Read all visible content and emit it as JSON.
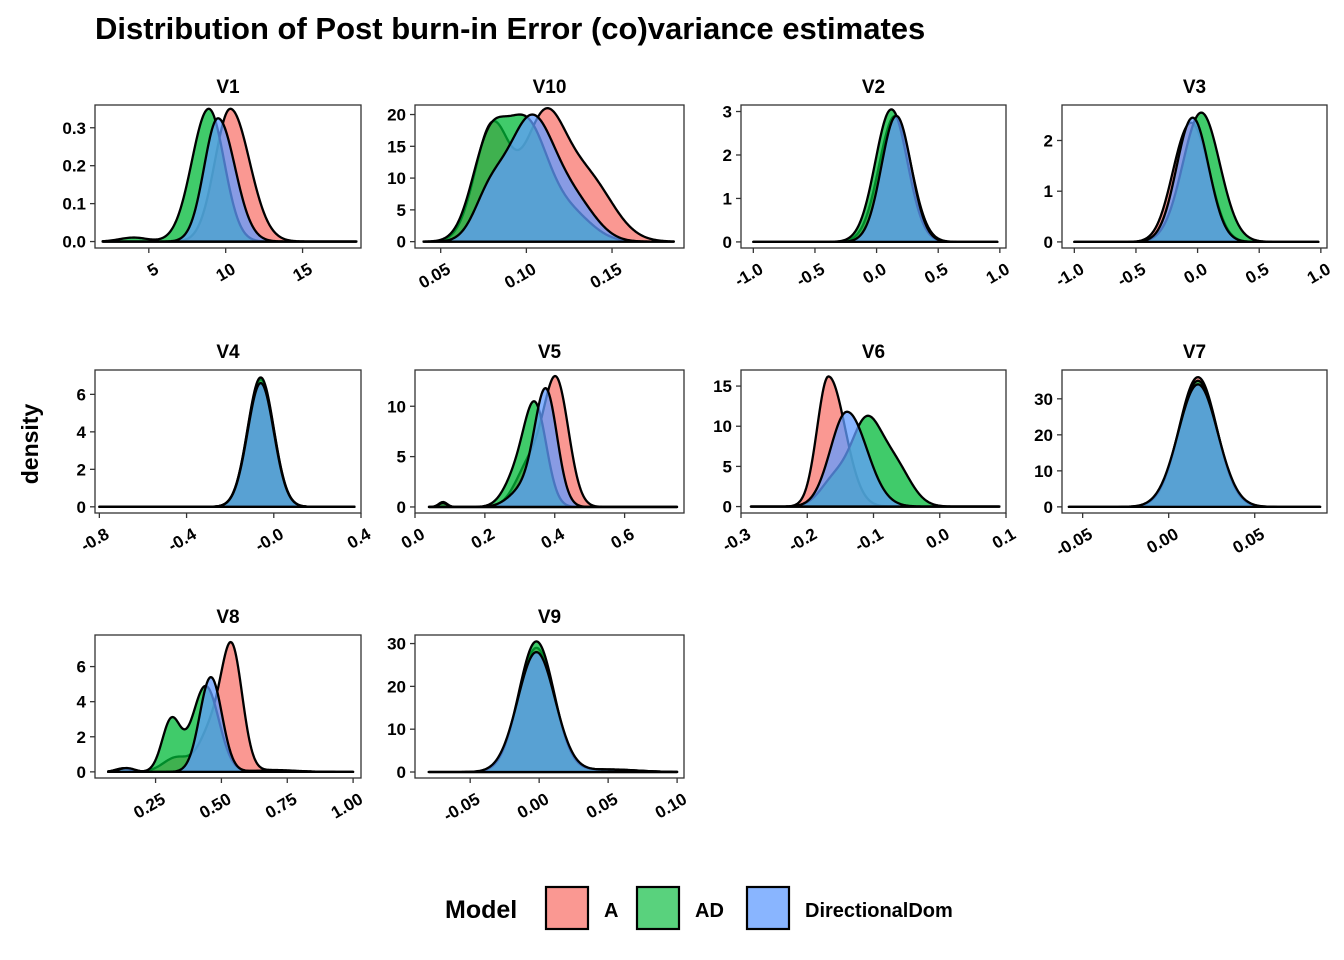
{
  "chart_data": {
    "type": "area",
    "title": "Distribution of Post burn-in Error (co)variance estimates",
    "ylabel": "density",
    "xlabel": "",
    "legend": {
      "title": "Model",
      "position": "bottom",
      "entries": [
        {
          "name": "A",
          "color": "#F8766D"
        },
        {
          "name": "AD",
          "color": "#00BA38"
        },
        {
          "name": "DirectionalDom",
          "color": "#619CFF"
        }
      ]
    },
    "fill_opacity": 0.75,
    "panels": [
      {
        "label": "V1",
        "xlim": [
          1.5,
          18.8
        ],
        "ylim": [
          -0.017,
          0.36
        ],
        "xticks": [
          5,
          10,
          15
        ],
        "xtick_labels": [
          "5",
          "10",
          "15"
        ],
        "yticks": [
          0.0,
          0.1,
          0.2,
          0.3
        ],
        "ytick_labels": [
          "0.0",
          "0.1",
          "0.2",
          "0.3"
        ],
        "tail_start": 2.0,
        "tail_end": 18.5,
        "series": [
          {
            "name": "A",
            "components": [
              {
                "w": 1,
                "mu": 10.3,
                "sdl": 1.0,
                "sdr": 1.25
              }
            ],
            "peak": 0.35
          },
          {
            "name": "AD",
            "components": [
              {
                "w": 1,
                "mu": 8.9,
                "sdl": 1.1,
                "sdr": 1.0
              },
              {
                "w": 0.03,
                "mu": 4.0,
                "sd": 0.9
              }
            ],
            "peak": 0.35
          },
          {
            "name": "DirectionalDom",
            "components": [
              {
                "w": 1,
                "mu": 9.5,
                "sdl": 0.9,
                "sdr": 1.1
              }
            ],
            "peak": 0.325
          }
        ]
      },
      {
        "label": "V10",
        "xlim": [
          0.035,
          0.192
        ],
        "ylim": [
          -1.0,
          21.5
        ],
        "xticks": [
          0.05,
          0.1,
          0.15
        ],
        "xtick_labels": [
          "0.05",
          "0.10",
          "0.15"
        ],
        "yticks": [
          0,
          5,
          10,
          15,
          20
        ],
        "ytick_labels": [
          "0",
          "5",
          "10",
          "15",
          "20"
        ],
        "tail_start": 0.04,
        "tail_end": 0.186,
        "series": [
          {
            "name": "A",
            "components": [
              {
                "w": 1,
                "mu": 0.08,
                "sd": 0.01
              },
              {
                "w": 1,
                "mu": 0.11,
                "sd": 0.012
              },
              {
                "w": 0.55,
                "mu": 0.135,
                "sd": 0.015
              }
            ],
            "peak": 21
          },
          {
            "name": "AD",
            "components": [
              {
                "w": 1,
                "mu": 0.078,
                "sd": 0.01
              },
              {
                "w": 1.2,
                "mu": 0.1,
                "sd": 0.012
              },
              {
                "w": 0.3,
                "mu": 0.125,
                "sd": 0.013
              }
            ],
            "peak": 20
          },
          {
            "name": "DirectionalDom",
            "components": [
              {
                "w": 0.3,
                "mu": 0.078,
                "sd": 0.009
              },
              {
                "w": 1,
                "mu": 0.103,
                "sd": 0.014
              },
              {
                "w": 0.25,
                "mu": 0.13,
                "sd": 0.012
              }
            ],
            "peak": 20
          }
        ]
      },
      {
        "label": "V2",
        "xlim": [
          -1.1,
          1.05
        ],
        "ylim": [
          -0.14,
          3.15
        ],
        "xticks": [
          -1.0,
          -0.5,
          0.0,
          0.5,
          1.0
        ],
        "xtick_labels": [
          "-1.0",
          "-0.5",
          "0.0",
          "0.5",
          "1.0"
        ],
        "yticks": [
          0,
          1,
          2,
          3
        ],
        "ytick_labels": [
          "0",
          "1",
          "2",
          "3"
        ],
        "tail_start": -1.0,
        "tail_end": 0.98,
        "series": [
          {
            "name": "A",
            "components": [
              {
                "w": 1,
                "mu": 0.15,
                "sd": 0.13
              }
            ],
            "peak": 2.9
          },
          {
            "name": "AD",
            "components": [
              {
                "w": 1,
                "mu": 0.12,
                "sd": 0.13
              }
            ],
            "peak": 3.05
          },
          {
            "name": "DirectionalDom",
            "components": [
              {
                "w": 1,
                "mu": 0.16,
                "sd": 0.12
              }
            ],
            "peak": 2.9
          }
        ]
      },
      {
        "label": "V3",
        "xlim": [
          -1.1,
          1.05
        ],
        "ylim": [
          -0.12,
          2.7
        ],
        "xticks": [
          -1.0,
          -0.5,
          0.0,
          0.5,
          1.0
        ],
        "xtick_labels": [
          "-1.0",
          "-0.5",
          "0.0",
          "0.5",
          "1.0"
        ],
        "yticks": [
          0,
          1,
          2
        ],
        "ytick_labels": [
          "0",
          "1",
          "2"
        ],
        "tail_start": -1.0,
        "tail_end": 0.98,
        "series": [
          {
            "name": "A",
            "components": [
              {
                "w": 1,
                "mu": -0.12,
                "sd": 0.12
              },
              {
                "w": 0.95,
                "mu": 0.02,
                "sd": 0.12
              }
            ],
            "peak": 2.35
          },
          {
            "name": "AD",
            "components": [
              {
                "w": 1,
                "mu": 0.03,
                "sd": 0.15
              }
            ],
            "peak": 2.55
          },
          {
            "name": "DirectionalDom",
            "components": [
              {
                "w": 1,
                "mu": -0.04,
                "sd": 0.13
              }
            ],
            "peak": 2.45
          }
        ]
      },
      {
        "label": "V4",
        "xlim": [
          -0.82,
          0.4
        ],
        "ylim": [
          -0.33,
          7.3
        ],
        "xticks": [
          -0.8,
          -0.4,
          0.0,
          0.4
        ],
        "xtick_labels": [
          "-0.8",
          "-0.4",
          "-0.0",
          "0.4"
        ],
        "yticks": [
          0,
          2,
          4,
          6
        ],
        "ytick_labels": [
          "0",
          "2",
          "4",
          "6"
        ],
        "tail_start": -0.8,
        "tail_end": 0.37,
        "series": [
          {
            "name": "A",
            "components": [
              {
                "w": 1,
                "mu": -0.06,
                "sd": 0.06
              }
            ],
            "peak": 6.8
          },
          {
            "name": "AD",
            "components": [
              {
                "w": 1,
                "mu": -0.06,
                "sd": 0.06
              }
            ],
            "peak": 6.9
          },
          {
            "name": "DirectionalDom",
            "components": [
              {
                "w": 1,
                "mu": -0.06,
                "sd": 0.06
              }
            ],
            "peak": 6.6
          }
        ]
      },
      {
        "label": "V5",
        "xlim": [
          0.0,
          0.77
        ],
        "ylim": [
          -0.6,
          13.6
        ],
        "xticks": [
          0.0,
          0.2,
          0.4,
          0.6
        ],
        "xtick_labels": [
          "0.0",
          "0.2",
          "0.4",
          "0.6"
        ],
        "yticks": [
          0,
          5,
          10
        ],
        "ytick_labels": [
          "0",
          "5",
          "10"
        ],
        "tail_start": 0.04,
        "tail_end": 0.75,
        "series": [
          {
            "name": "A",
            "components": [
              {
                "w": 1,
                "mu": 0.405,
                "sd": 0.035
              },
              {
                "w": 0.35,
                "mu": 0.33,
                "sd": 0.04
              },
              {
                "w": 0.04,
                "mu": 0.08,
                "sd": 0.012
              }
            ],
            "peak": 13
          },
          {
            "name": "AD",
            "components": [
              {
                "w": 1,
                "mu": 0.345,
                "sd": 0.032
              },
              {
                "w": 0.3,
                "mu": 0.29,
                "sd": 0.035
              },
              {
                "w": 0.04,
                "mu": 0.08,
                "sd": 0.012
              }
            ],
            "peak": 10.5
          },
          {
            "name": "DirectionalDom",
            "components": [
              {
                "w": 1,
                "mu": 0.375,
                "sd": 0.032
              },
              {
                "w": 0.15,
                "mu": 0.31,
                "sd": 0.04
              }
            ],
            "peak": 11.8
          }
        ]
      },
      {
        "label": "V6",
        "xlim": [
          -0.3,
          0.1
        ],
        "ylim": [
          -0.8,
          17.0
        ],
        "xticks": [
          -0.3,
          -0.2,
          -0.1,
          0.0,
          0.1
        ],
        "xtick_labels": [
          "-0.3",
          "-0.2",
          "-0.1",
          "0.0",
          "0.1"
        ],
        "yticks": [
          0,
          5,
          10,
          15
        ],
        "ytick_labels": [
          "0",
          "5",
          "10",
          "15"
        ],
        "tail_start": -0.285,
        "tail_end": 0.09,
        "series": [
          {
            "name": "A",
            "components": [
              {
                "w": 1,
                "mu": -0.168,
                "sdl": 0.017,
                "sdr": 0.025
              }
            ],
            "peak": 16.2
          },
          {
            "name": "AD",
            "components": [
              {
                "w": 1,
                "mu": -0.112,
                "sd": 0.022
              },
              {
                "w": 0.55,
                "mu": -0.07,
                "sd": 0.025
              },
              {
                "w": 0.35,
                "mu": -0.158,
                "sd": 0.022
              }
            ],
            "peak": 11.3
          },
          {
            "name": "DirectionalDom",
            "components": [
              {
                "w": 1,
                "mu": -0.14,
                "sdl": 0.025,
                "sdr": 0.03
              }
            ],
            "peak": 11.8
          }
        ]
      },
      {
        "label": "V7",
        "xlim": [
          -0.062,
          0.092
        ],
        "ylim": [
          -1.7,
          38.0
        ],
        "xticks": [
          -0.05,
          0.0,
          0.05
        ],
        "xtick_labels": [
          "-0.05",
          "0.00",
          "0.05"
        ],
        "yticks": [
          0,
          10,
          20,
          30
        ],
        "ytick_labels": [
          "0",
          "10",
          "20",
          "30"
        ],
        "tail_start": -0.058,
        "tail_end": 0.088,
        "series": [
          {
            "name": "A",
            "components": [
              {
                "w": 1,
                "mu": 0.017,
                "sd": 0.011
              }
            ],
            "peak": 36
          },
          {
            "name": "AD",
            "components": [
              {
                "w": 1,
                "mu": 0.017,
                "sd": 0.0112
              }
            ],
            "peak": 35
          },
          {
            "name": "DirectionalDom",
            "components": [
              {
                "w": 1,
                "mu": 0.017,
                "sd": 0.0115
              }
            ],
            "peak": 34
          }
        ]
      },
      {
        "label": "V8",
        "xlim": [
          0.02,
          1.03
        ],
        "ylim": [
          -0.35,
          7.8
        ],
        "xticks": [
          0.25,
          0.5,
          0.75,
          1.0
        ],
        "xtick_labels": [
          "0.25",
          "0.50",
          "0.75",
          "1.00"
        ],
        "yticks": [
          0,
          2,
          4,
          6
        ],
        "ytick_labels": [
          "0",
          "2",
          "4",
          "6"
        ],
        "tail_start": 0.07,
        "tail_end": 1.0,
        "series": [
          {
            "name": "A",
            "components": [
              {
                "w": 1,
                "mu": 0.54,
                "sd": 0.04
              },
              {
                "w": 0.33,
                "mu": 0.46,
                "sd": 0.045
              },
              {
                "w": 0.12,
                "mu": 0.33,
                "sd": 0.05
              },
              {
                "w": 0.03,
                "mu": 0.13,
                "sd": 0.03
              },
              {
                "w": 0.015,
                "mu": 0.7,
                "sd": 0.08
              }
            ],
            "peak": 7.4
          },
          {
            "name": "AD",
            "components": [
              {
                "w": 1,
                "mu": 0.44,
                "sd": 0.05
              },
              {
                "w": 0.6,
                "mu": 0.31,
                "sd": 0.035
              },
              {
                "w": 0.04,
                "mu": 0.13,
                "sd": 0.03
              },
              {
                "w": 0.015,
                "mu": 0.7,
                "sd": 0.08
              }
            ],
            "peak": 4.9
          },
          {
            "name": "DirectionalDom",
            "components": [
              {
                "w": 1,
                "mu": 0.46,
                "sd": 0.042
              },
              {
                "w": 0.04,
                "mu": 0.14,
                "sd": 0.03
              },
              {
                "w": 0.015,
                "mu": 0.7,
                "sd": 0.08
              }
            ],
            "peak": 5.4
          }
        ]
      },
      {
        "label": "V9",
        "xlim": [
          -0.09,
          0.105
        ],
        "ylim": [
          -1.4,
          32.0
        ],
        "xticks": [
          -0.05,
          0.0,
          0.05,
          0.1
        ],
        "xtick_labels": [
          "-0.05",
          "0.00",
          "0.05",
          "0.10"
        ],
        "yticks": [
          0,
          10,
          20,
          30
        ],
        "ytick_labels": [
          "0",
          "10",
          "20",
          "30"
        ],
        "tail_start": -0.08,
        "tail_end": 0.1,
        "series": [
          {
            "name": "A",
            "components": [
              {
                "w": 1,
                "mu": -0.002,
                "sd": 0.013
              },
              {
                "w": 0.02,
                "mu": 0.05,
                "sd": 0.02
              }
            ],
            "peak": 29
          },
          {
            "name": "AD",
            "components": [
              {
                "w": 1,
                "mu": -0.002,
                "sd": 0.0128
              },
              {
                "w": 0.02,
                "mu": 0.05,
                "sd": 0.02
              }
            ],
            "peak": 30.5
          },
          {
            "name": "DirectionalDom",
            "components": [
              {
                "w": 1,
                "mu": -0.002,
                "sd": 0.0135
              },
              {
                "w": 0.02,
                "mu": 0.05,
                "sd": 0.02
              }
            ],
            "peak": 28
          }
        ]
      }
    ]
  }
}
